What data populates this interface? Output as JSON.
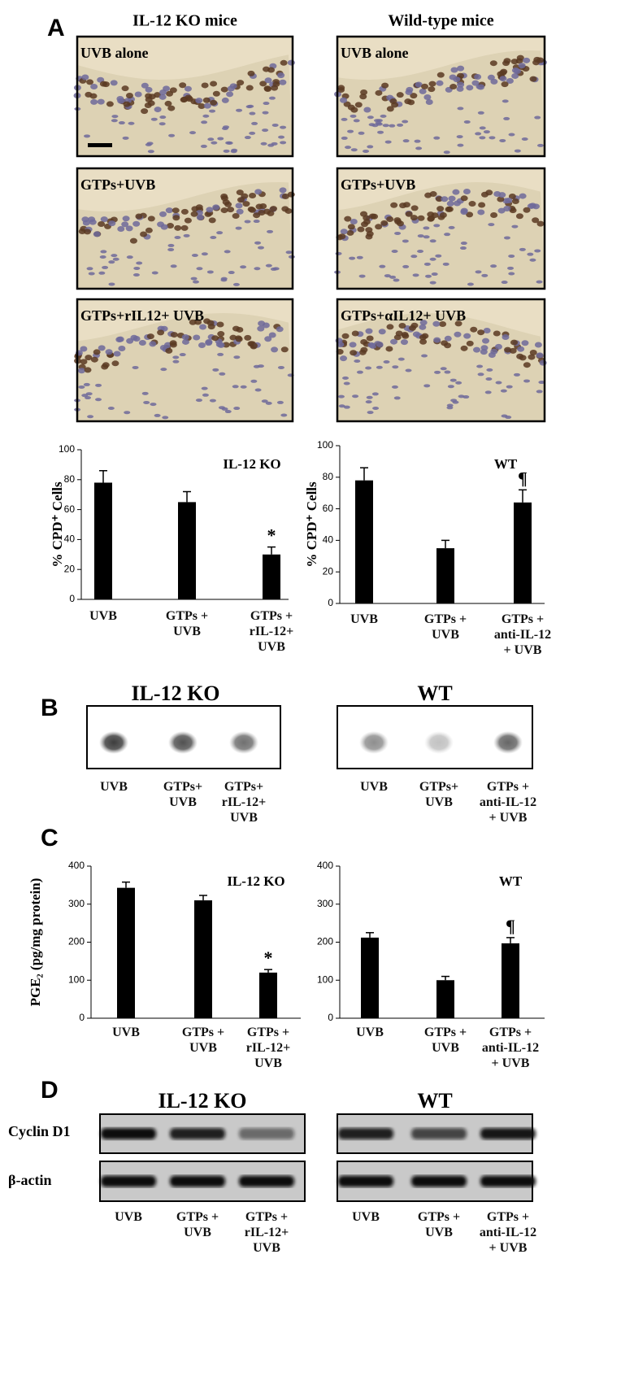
{
  "panels": [
    "A",
    "B",
    "C",
    "D"
  ],
  "histology": {
    "columns": [
      "IL-12 KO mice",
      "Wild-type mice"
    ],
    "images": [
      [
        "UVB alone",
        "GTPs+UVB",
        "GTPs+rIL12+ UVB"
      ],
      [
        "UVB alone",
        "GTPs+UVB",
        "GTPs+αIL12+ UVB"
      ]
    ]
  },
  "chart_data": [
    {
      "type": "bar",
      "annotation": "IL-12 KO",
      "ylabel": "% CPD⁺ Cells",
      "color": "#000000",
      "categories": [
        "UVB",
        "GTPs +\nUVB",
        "GTPs +\nrIL-12+\nUVB"
      ],
      "values": [
        78,
        65,
        30
      ],
      "errors": [
        8,
        7,
        5
      ],
      "value_markers": [
        null,
        null,
        "*"
      ],
      "ylim": [
        0,
        100
      ],
      "yticks": [
        0,
        20,
        40,
        60,
        80,
        100
      ]
    },
    {
      "type": "bar",
      "annotation": "WT",
      "ylabel": "% CPD⁺ Cells",
      "color": "#000000",
      "categories": [
        "UVB",
        "GTPs +\nUVB",
        "GTPs +\nanti-IL-12\n+ UVB"
      ],
      "values": [
        78,
        35,
        64
      ],
      "errors": [
        8,
        5,
        8
      ],
      "value_markers": [
        null,
        null,
        "¶"
      ],
      "ylim": [
        0,
        100
      ],
      "yticks": [
        0,
        20,
        40,
        60,
        80,
        100
      ]
    },
    {
      "type": "bar",
      "annotation": "IL-12 KO",
      "ylabel": "PGE₂ (pg/mg protein)",
      "color": "#000000",
      "categories": [
        "UVB",
        "GTPs +\nUVB",
        "GTPs +\nrIL-12+\nUVB"
      ],
      "values": [
        343,
        310,
        120
      ],
      "errors": [
        15,
        13,
        8
      ],
      "value_markers": [
        null,
        null,
        "*"
      ],
      "ylim": [
        0,
        400
      ],
      "yticks": [
        0,
        100,
        200,
        300,
        400
      ]
    },
    {
      "type": "bar",
      "annotation": "WT",
      "color": "#000000",
      "categories": [
        "UVB",
        "GTPs +\nUVB",
        "GTPs +\nanti-IL-12\n+ UVB"
      ],
      "values": [
        212,
        100,
        197
      ],
      "errors": [
        13,
        10,
        15
      ],
      "value_markers": [
        null,
        null,
        "¶"
      ],
      "ylim": [
        0,
        400
      ],
      "yticks": [
        0,
        100,
        200,
        300,
        400
      ]
    }
  ],
  "dot_blot": {
    "titles": [
      "IL-12 KO",
      "WT"
    ],
    "lanes": [
      [
        "UVB",
        "GTPs+\nUVB",
        "GTPs+\nrIL-12+\nUVB"
      ],
      [
        "UVB",
        "GTPs+\nUVB",
        "GTPs +\nanti-IL-12\n+ UVB"
      ]
    ]
  },
  "western": {
    "titles": [
      "IL-12 KO",
      "WT"
    ],
    "rows": [
      "Cyclin D1",
      "β-actin"
    ],
    "lanes": [
      [
        "UVB",
        "GTPs +\nUVB",
        "GTPs +\nrIL-12+\nUVB"
      ],
      [
        "UVB",
        "GTPs +\nUVB",
        "GTPs +\nanti-IL-12\n+ UVB"
      ]
    ]
  }
}
